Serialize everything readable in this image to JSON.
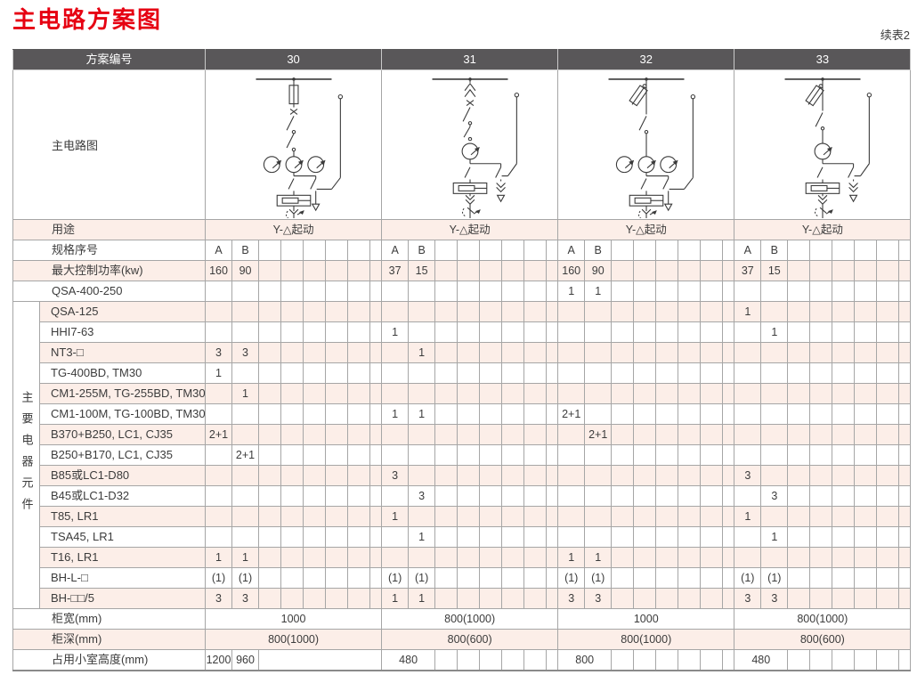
{
  "page": {
    "title": "主电路方案图",
    "continuation_note": "续表2"
  },
  "colors": {
    "title_red": "#e60012",
    "header_bg": "#595759",
    "header_text": "#ffffff",
    "pink_row": "#fceee8",
    "grid_line": "#a6a6a6",
    "diagram_stroke": "#3a3a3a"
  },
  "table": {
    "header": {
      "label": "方案编号",
      "schemes": [
        "30",
        "31",
        "32",
        "33"
      ]
    },
    "diagram_row_label": "主电路图",
    "side_label": "主要电器元件",
    "rows": [
      {
        "label": "用途",
        "style": "pink",
        "type": "merged",
        "values": [
          "Y-△起动",
          "Y-△起动",
          "Y-△起动",
          "Y-△起动"
        ]
      },
      {
        "label": "规格序号",
        "style": "white",
        "type": "ab",
        "values": [
          [
            "A",
            "B"
          ],
          [
            "A",
            "B"
          ],
          [
            "A",
            "B"
          ],
          [
            "A",
            "B"
          ]
        ]
      },
      {
        "label": "最大控制功率(kw)",
        "style": "pink",
        "type": "ab",
        "values": [
          [
            "160",
            "90"
          ],
          [
            "37",
            "15"
          ],
          [
            "160",
            "90"
          ],
          [
            "37",
            "15"
          ]
        ]
      },
      {
        "label": "QSA-400-250",
        "style": "white",
        "type": "ab",
        "values": [
          [
            "",
            ""
          ],
          [
            "",
            ""
          ],
          [
            "1",
            "1"
          ],
          [
            "",
            ""
          ]
        ]
      },
      {
        "label": "QSA-125",
        "style": "pink",
        "side": true,
        "type": "ab",
        "values": [
          [
            "",
            ""
          ],
          [
            "",
            ""
          ],
          [
            "",
            ""
          ],
          [
            "1",
            ""
          ]
        ]
      },
      {
        "label": "HHI7-63",
        "style": "white",
        "side": true,
        "type": "ab",
        "values": [
          [
            "",
            ""
          ],
          [
            "1",
            ""
          ],
          [
            "",
            ""
          ],
          [
            "",
            "1"
          ]
        ]
      },
      {
        "label": "NT3-□",
        "style": "pink",
        "side": true,
        "type": "ab",
        "values": [
          [
            "3",
            "3"
          ],
          [
            "",
            "1"
          ],
          [
            "",
            ""
          ],
          [
            "",
            ""
          ]
        ]
      },
      {
        "label": "TG-400BD, TM30",
        "style": "white",
        "side": true,
        "type": "ab",
        "values": [
          [
            "1",
            ""
          ],
          [
            "",
            ""
          ],
          [
            "",
            ""
          ],
          [
            "",
            ""
          ]
        ]
      },
      {
        "label": "CM1-255M, TG-255BD, TM30",
        "style": "pink",
        "side": true,
        "type": "ab",
        "values": [
          [
            "",
            "1"
          ],
          [
            "",
            ""
          ],
          [
            "",
            ""
          ],
          [
            "",
            ""
          ]
        ]
      },
      {
        "label": "CM1-100M, TG-100BD, TM30",
        "style": "white",
        "side": true,
        "type": "ab",
        "values": [
          [
            "",
            ""
          ],
          [
            "1",
            "1"
          ],
          [
            "2+1",
            ""
          ],
          [
            "",
            ""
          ]
        ]
      },
      {
        "label": "B370+B250, LC1, CJ35",
        "style": "pink",
        "side": true,
        "type": "ab",
        "values": [
          [
            "2+1",
            ""
          ],
          [
            "",
            ""
          ],
          [
            "",
            "2+1"
          ],
          [
            "",
            ""
          ]
        ]
      },
      {
        "label": "B250+B170, LC1, CJ35",
        "style": "white",
        "side": true,
        "type": "ab",
        "values": [
          [
            "",
            "2+1"
          ],
          [
            "",
            ""
          ],
          [
            "",
            ""
          ],
          [
            "",
            ""
          ]
        ]
      },
      {
        "label": "B85或LC1-D80",
        "style": "pink",
        "side": true,
        "type": "ab",
        "values": [
          [
            "",
            ""
          ],
          [
            "3",
            ""
          ],
          [
            "",
            ""
          ],
          [
            "3",
            ""
          ]
        ]
      },
      {
        "label": "B45或LC1-D32",
        "style": "white",
        "side": true,
        "type": "ab",
        "values": [
          [
            "",
            ""
          ],
          [
            "",
            "3"
          ],
          [
            "",
            ""
          ],
          [
            "",
            "3"
          ]
        ]
      },
      {
        "label": "T85, LR1",
        "style": "pink",
        "side": true,
        "type": "ab",
        "values": [
          [
            "",
            ""
          ],
          [
            "1",
            ""
          ],
          [
            "",
            ""
          ],
          [
            "1",
            ""
          ]
        ]
      },
      {
        "label": "TSA45, LR1",
        "style": "white",
        "side": true,
        "type": "ab",
        "values": [
          [
            "",
            ""
          ],
          [
            "",
            "1"
          ],
          [
            "",
            ""
          ],
          [
            "",
            "1"
          ]
        ]
      },
      {
        "label": "T16, LR1",
        "style": "pink",
        "side": true,
        "type": "ab",
        "values": [
          [
            "1",
            "1"
          ],
          [
            "",
            ""
          ],
          [
            "1",
            "1"
          ],
          [
            "",
            ""
          ]
        ]
      },
      {
        "label": "BH-L-□",
        "style": "white",
        "side": true,
        "type": "ab",
        "values": [
          [
            "(1)",
            "(1)"
          ],
          [
            "(1)",
            "(1)"
          ],
          [
            "(1)",
            "(1)"
          ],
          [
            "(1)",
            "(1)"
          ]
        ]
      },
      {
        "label": "BH-□□/5",
        "style": "pink",
        "side": true,
        "type": "ab",
        "values": [
          [
            "3",
            "3"
          ],
          [
            "1",
            "1"
          ],
          [
            "3",
            "3"
          ],
          [
            "3",
            "3"
          ]
        ]
      },
      {
        "label": "柜宽(mm)",
        "style": "white",
        "type": "merged",
        "values": [
          "1000",
          "800(1000)",
          "1000",
          "800(1000)"
        ]
      },
      {
        "label": "柜深(mm)",
        "style": "pink",
        "type": "merged",
        "values": [
          "800(1000)",
          "800(600)",
          "800(1000)",
          "800(600)"
        ]
      },
      {
        "label": "占用小室高度(mm)",
        "style": "white",
        "type": "height",
        "values": [
          [
            "1200",
            "960"
          ],
          "480",
          "800",
          "480"
        ]
      }
    ]
  }
}
